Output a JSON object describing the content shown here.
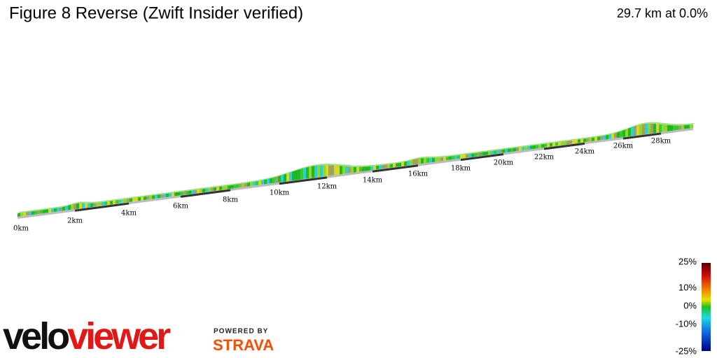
{
  "header": {
    "title": "Figure 8 Reverse (Zwift Insider verified)",
    "summary": "29.7 km at 0.0%"
  },
  "profile": {
    "distance_labels": [
      "0km",
      "2km",
      "4km",
      "6km",
      "8km",
      "10km",
      "12km",
      "14km",
      "16km",
      "18km",
      "20km",
      "22km",
      "24km",
      "26km",
      "28km"
    ]
  },
  "gradient_legend": {
    "labels": [
      "25%",
      "10%",
      "0%",
      "-10%",
      "-25%"
    ]
  },
  "logo": {
    "parts": [
      "velo",
      "viewer"
    ],
    "powered_by": "POWERED BY",
    "partner": "STRAVA"
  }
}
